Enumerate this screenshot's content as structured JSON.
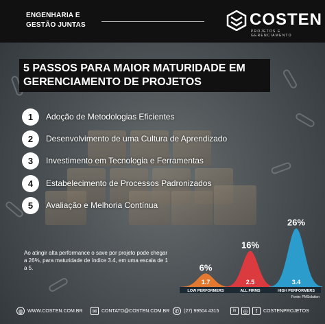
{
  "header": {
    "left_line1": "ENGENHARIA E",
    "left_line2": "GESTÃO JUNTAS",
    "logo_name": "COSTEN",
    "logo_tagline": "PROJETOS E GERENCIAMENTO"
  },
  "title": {
    "line1": "5 PASSOS PARA MAIOR MATURIDADE EM",
    "line2": "GERENCIAMENTO DE PROJETOS"
  },
  "steps": [
    {
      "num": "1",
      "label": "Adoção de Metodologias Eficientes"
    },
    {
      "num": "2",
      "label": "Desenvolvimento de uma Cultura de Aprendizado"
    },
    {
      "num": "3",
      "label": "Investimento em Tecnologia e Ferramentas"
    },
    {
      "num": "4",
      "label": "Estabelecimento de Processos Padronizados"
    },
    {
      "num": "5",
      "label": "Avaliação e Melhoria Contínua"
    }
  ],
  "bottom_text": "Ao atingir alta performance o save por projeto pode chegar a 26%, para maturidade de índice 3.4, em uma escala de 1 a 5.",
  "chart_data": {
    "type": "area",
    "categories": [
      "LOW PERFORMERS",
      "ALL FIRMS",
      "HIGH PERFORMERS"
    ],
    "series": [
      {
        "values": [
          6,
          16,
          26
        ],
        "colors": [
          "#f07c2c",
          "#e8383d",
          "#2aa4d8"
        ]
      }
    ],
    "percent_labels": [
      "6%",
      "16%",
      "26%"
    ],
    "index_labels": [
      "1.7",
      "2.5",
      "3.4"
    ],
    "source": "Fonte: PMSolution"
  },
  "footer": {
    "website": "WWW.COSTEN.COM.BR",
    "email": "CONTATO@COSTEN.COM.BR",
    "phone": "(27) 99504 4315",
    "social_handle": "COSTENPROJETOS"
  },
  "icons": {
    "globe": "globe-icon",
    "mail": "mail-icon",
    "whatsapp": "whatsapp-icon",
    "linkedin": "linkedin-icon",
    "instagram": "instagram-icon",
    "facebook": "facebook-icon"
  }
}
